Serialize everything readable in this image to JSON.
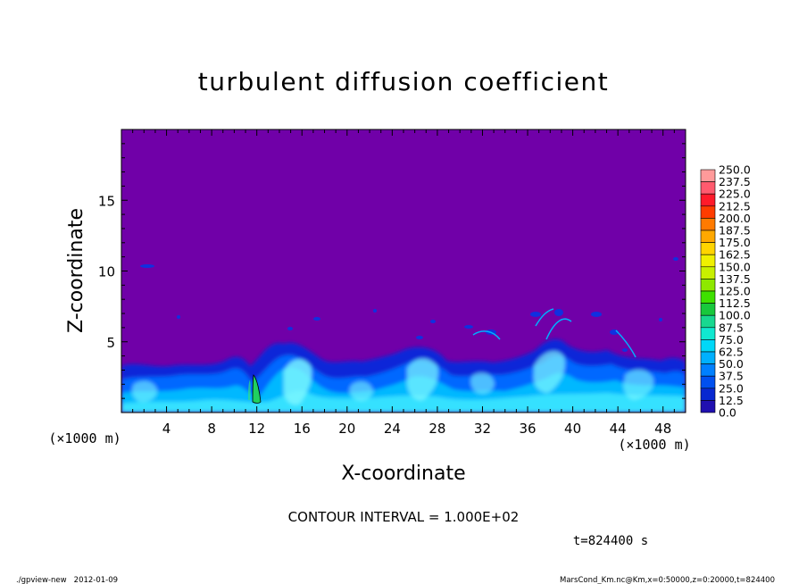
{
  "chart_data": {
    "type": "heatmap",
    "title": "turbulent diffusion coefficient",
    "xlabel": "X-coordinate",
    "ylabel": "Z-coordinate",
    "x_unit": "(×1000 m)",
    "y_unit": "(×1000 m)",
    "xlim": [
      0,
      50
    ],
    "ylim": [
      0,
      20
    ],
    "x_ticks": [
      4,
      8,
      12,
      16,
      20,
      24,
      28,
      32,
      36,
      40,
      44,
      48
    ],
    "y_ticks": [
      5,
      10,
      15
    ],
    "colorbar_levels": [
      "250.0",
      "237.5",
      "225.0",
      "212.5",
      "200.0",
      "187.5",
      "175.0",
      "162.5",
      "150.0",
      "137.5",
      "125.0",
      "112.5",
      "100.0",
      "87.5",
      "75.0",
      "62.5",
      "50.0",
      "37.5",
      "25.0",
      "12.5",
      "0.0"
    ],
    "colorbar_colors": [
      "#ff9a9a",
      "#ff5a6e",
      "#ff1a2a",
      "#ff3c00",
      "#ff7a00",
      "#ffa800",
      "#ffd400",
      "#f0f000",
      "#c8f000",
      "#8ee800",
      "#3ee000",
      "#18c83c",
      "#18d890",
      "#10e8d0",
      "#00d8f8",
      "#00b0ff",
      "#0080ff",
      "#0050f0",
      "#0828d0",
      "#2010b0"
    ],
    "background_color": "#7000a8",
    "grid": false,
    "legend_placement": "right"
  },
  "footer": {
    "contour_interval": "CONTOUR INTERVAL = 1.000E+02",
    "time": "t=824400 s",
    "left_note": "./gpview-new   2012-01-09",
    "right_note": "MarsCond_Km.nc@Km,x=0:50000,z=0:20000,t=824400"
  }
}
